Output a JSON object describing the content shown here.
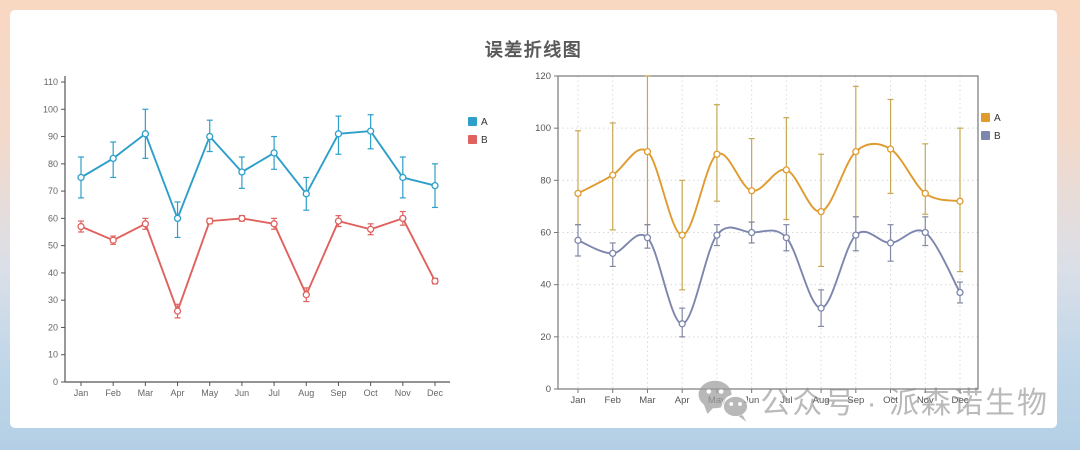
{
  "page": {
    "title": "误差折线图",
    "watermark": {
      "icon": "wechat-logo",
      "text": "公众号 · 派森诺生物"
    },
    "colors": {
      "panel": "#ffffff",
      "background_top": "#f9d8c2",
      "background_bottom": "#b4cfe5",
      "title_text": "#595959",
      "watermark_gray": "#828282"
    }
  },
  "chart_data": [
    {
      "type": "line",
      "title": "误差折线图",
      "subtitle": "",
      "xlabel": "",
      "ylabel": "",
      "categories": [
        "Jan",
        "Feb",
        "Mar",
        "Apr",
        "May",
        "Jun",
        "Jul",
        "Aug",
        "Sep",
        "Oct",
        "Nov",
        "Dec"
      ],
      "ylim": [
        0,
        110
      ],
      "ytick_step": 10,
      "grid": false,
      "boxed": false,
      "smooth": false,
      "error_bars": true,
      "legend": {
        "position": "right",
        "labels": [
          "A",
          "B"
        ]
      },
      "series": [
        {
          "name": "A",
          "color": "#2e9fc9",
          "err_color": "#2e9fc9",
          "values": [
            75,
            82,
            91,
            60,
            90,
            77,
            84,
            69,
            91,
            92,
            75,
            72
          ],
          "err_lo": [
            67.5,
            75,
            82,
            53,
            84.5,
            71,
            78,
            63,
            83.5,
            85.5,
            67.5,
            64
          ],
          "err_hi": [
            82.5,
            88,
            100,
            66,
            96,
            82.5,
            90,
            75,
            97.5,
            98,
            82.5,
            80
          ]
        },
        {
          "name": "B",
          "color": "#e0615e",
          "err_color": "#e0615e",
          "values": [
            57,
            52,
            58,
            26,
            59,
            60,
            58,
            32,
            59,
            56,
            60,
            37
          ],
          "err_lo": [
            55,
            50.5,
            56,
            23.5,
            58,
            59,
            56,
            29.5,
            57,
            54,
            57.5,
            36
          ],
          "err_hi": [
            59,
            53.5,
            60,
            28.5,
            60,
            61,
            60,
            34.5,
            61,
            58,
            62.5,
            38
          ]
        }
      ]
    },
    {
      "type": "line",
      "title": "",
      "subtitle": "",
      "xlabel": "",
      "ylabel": "",
      "categories": [
        "Jan",
        "Feb",
        "Mar",
        "Apr",
        "May",
        "Jun",
        "Jul",
        "Aug",
        "Sep",
        "Oct",
        "Nov",
        "Dec"
      ],
      "ylim": [
        0,
        120
      ],
      "ytick_step": 20,
      "grid": true,
      "boxed": true,
      "smooth": true,
      "error_bars": true,
      "legend": {
        "position": "right",
        "labels": [
          "A",
          "B"
        ]
      },
      "series": [
        {
          "name": "A",
          "color": "#e09b2f",
          "err_color": "#c7a852",
          "values": [
            75,
            82,
            91,
            59,
            90,
            76,
            84,
            68,
            91,
            92,
            75,
            72
          ],
          "err_lo": [
            63,
            61,
            63,
            38,
            72,
            64,
            65,
            47,
            66,
            75,
            67,
            45
          ],
          "err_hi": [
            99,
            102,
            120,
            80,
            109,
            96,
            104,
            90,
            116,
            111,
            94,
            100
          ]
        },
        {
          "name": "B",
          "color": "#7d86ac",
          "err_color": "#8289a4",
          "values": [
            57,
            52,
            58,
            25,
            59,
            60,
            58,
            31,
            59,
            56,
            60,
            37
          ],
          "err_lo": [
            51,
            47,
            54,
            20,
            55,
            56,
            53,
            24,
            53,
            49,
            55,
            33
          ],
          "err_hi": [
            63,
            56,
            63,
            31,
            63,
            64,
            63,
            38,
            66,
            63,
            66,
            41
          ]
        }
      ]
    }
  ]
}
